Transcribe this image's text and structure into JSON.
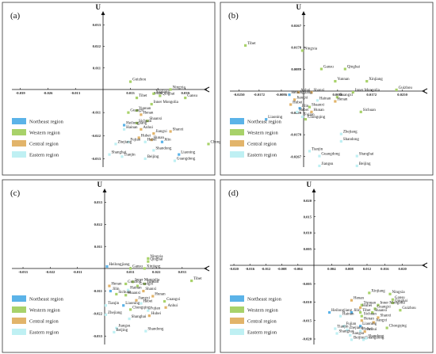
{
  "colors": {
    "northeast": "#5bb3e8",
    "western": "#a8d26a",
    "central": "#e2b46a",
    "eastern": "#bff0f3",
    "axis": "#111111",
    "border": "#333333"
  },
  "legend": {
    "items": [
      {
        "key": "northeast",
        "label": "Northeast region"
      },
      {
        "key": "western",
        "label": "Western region"
      },
      {
        "key": "central",
        "label": "Central region"
      },
      {
        "key": "eastern",
        "label": "Eastern region"
      }
    ]
  },
  "axis_y_label": "U",
  "chart_data": [
    {
      "type": "scatter",
      "panel": "(a)",
      "xlim": [
        -0.043,
        0.047
      ],
      "ylim": [
        -0.037,
        0.038
      ],
      "xticks": [
        -0.039,
        -0.026,
        -0.013,
        0.013,
        0.026,
        0.039
      ],
      "xtick_labels": [
        "-0.039",
        "-0.026",
        "-0.013",
        "0.013",
        "0.026",
        "0.039"
      ],
      "yticks": [
        0.033,
        0.022,
        0.011,
        -0.011,
        -0.022,
        -0.033
      ],
      "ytick_labels": [
        "0.033",
        "0.022",
        "0.011",
        "-0.011",
        "-0.022",
        "-0.033"
      ],
      "points": [
        {
          "name": "Guizhou",
          "region": "western",
          "x": 0.013,
          "y": 0.004
        },
        {
          "name": "Ningxia",
          "region": "western",
          "x": 0.032,
          "y": 0.0
        },
        {
          "name": "Xinjiang",
          "region": "western",
          "x": 0.024,
          "y": -0.002
        },
        {
          "name": "Qinghai",
          "region": "western",
          "x": 0.027,
          "y": -0.003
        },
        {
          "name": "Gansu",
          "region": "western",
          "x": 0.039,
          "y": -0.004
        },
        {
          "name": "Tibet",
          "region": "western",
          "x": 0.016,
          "y": -0.004
        },
        {
          "name": "Inner Mongolia",
          "region": "western",
          "x": 0.023,
          "y": -0.007
        },
        {
          "name": "Yunnan",
          "region": "western",
          "x": 0.016,
          "y": -0.01
        },
        {
          "name": "Guangxi",
          "region": "western",
          "x": 0.012,
          "y": -0.011
        },
        {
          "name": "Henan",
          "region": "central",
          "x": 0.018,
          "y": -0.012
        },
        {
          "name": "Shaanxi",
          "region": "western",
          "x": 0.021,
          "y": -0.015
        },
        {
          "name": "Sichuan",
          "region": "western",
          "x": 0.016,
          "y": -0.016
        },
        {
          "name": "Heilongjiang",
          "region": "northeast",
          "x": 0.01,
          "y": -0.017
        },
        {
          "name": "Hainan",
          "region": "eastern",
          "x": 0.01,
          "y": -0.019
        },
        {
          "name": "Anhui",
          "region": "central",
          "x": 0.018,
          "y": -0.019
        },
        {
          "name": "Shanxi",
          "region": "central",
          "x": 0.032,
          "y": -0.02
        },
        {
          "name": "Jiangxi",
          "region": "central",
          "x": 0.024,
          "y": -0.021
        },
        {
          "name": "Hubei",
          "region": "central",
          "x": 0.017,
          "y": -0.023
        },
        {
          "name": "Hunan",
          "region": "central",
          "x": 0.023,
          "y": -0.024
        },
        {
          "name": "Fujian",
          "region": "eastern",
          "x": 0.012,
          "y": -0.025
        },
        {
          "name": "Hebei",
          "region": "eastern",
          "x": 0.02,
          "y": -0.025
        },
        {
          "name": "Jilin",
          "region": "northeast",
          "x": 0.028,
          "y": -0.025
        },
        {
          "name": "Zhejiang",
          "region": "eastern",
          "x": 0.006,
          "y": -0.026
        },
        {
          "name": "Chongqing",
          "region": "western",
          "x": 0.05,
          "y": -0.026
        },
        {
          "name": "Shandong",
          "region": "eastern",
          "x": 0.024,
          "y": -0.029
        },
        {
          "name": "Shanghai",
          "region": "eastern",
          "x": 0.003,
          "y": -0.031
        },
        {
          "name": "Liaoning",
          "region": "northeast",
          "x": 0.036,
          "y": -0.031
        },
        {
          "name": "Tianjin",
          "region": "eastern",
          "x": 0.009,
          "y": -0.032
        },
        {
          "name": "Beijing",
          "region": "eastern",
          "x": 0.02,
          "y": -0.033
        },
        {
          "name": "Guangdong",
          "region": "eastern",
          "x": 0.034,
          "y": -0.034
        }
      ]
    },
    {
      "type": "scatter",
      "panel": "(b)",
      "xlim": [
        -0.0285,
        0.0295
      ],
      "ylim": [
        -0.031,
        0.031
      ],
      "xticks": [
        -0.025,
        -0.0172,
        -0.0086,
        0.0086,
        0.0172,
        0.025
      ],
      "xtick_labels": [
        "-0.0250",
        "-0.0172",
        "-0.0086",
        "0.0086",
        "0.0172",
        "0.0250"
      ],
      "yticks": [
        0.0267,
        0.0178,
        0.0089,
        -0.0089,
        -0.0178,
        -0.0267
      ],
      "ytick_labels": [
        "0.0267",
        "0.0178",
        "0.0089",
        "-0.0089",
        "-0.0178",
        "-0.0267"
      ],
      "extra_labels": [
        "Tibet",
        "0.0178",
        "0.0086"
      ],
      "points": [
        {
          "name": "Tibet",
          "region": "western",
          "x": -0.0225,
          "y": 0.0186
        },
        {
          "name": "Ningxia",
          "region": "western",
          "x": -0.0005,
          "y": 0.0165
        },
        {
          "name": "Gansu",
          "region": "western",
          "x": 0.0045,
          "y": 0.009
        },
        {
          "name": "Qinghai",
          "region": "western",
          "x": 0.0105,
          "y": 0.009
        },
        {
          "name": "Yunnan",
          "region": "western",
          "x": 0.008,
          "y": 0.004
        },
        {
          "name": "Xinjiang",
          "region": "western",
          "x": 0.016,
          "y": 0.004
        },
        {
          "name": "Guizhou",
          "region": "western",
          "x": 0.0235,
          "y": 0.0005
        },
        {
          "name": "Shanxi",
          "region": "central",
          "x": 0.002,
          "y": -0.0005
        },
        {
          "name": "Inner Mongolia",
          "region": "western",
          "x": 0.0125,
          "y": -0.0005
        },
        {
          "name": "Anhui",
          "region": "central",
          "x": -0.002,
          "y": -0.0005
        },
        {
          "name": "Heilongjiang",
          "region": "northeast",
          "x": -0.0055,
          "y": -0.0015
        },
        {
          "name": "Guangxi",
          "region": "western",
          "x": 0.0085,
          "y": -0.0025
        },
        {
          "name": "Jiangxi",
          "region": "central",
          "x": -0.0035,
          "y": -0.0035
        },
        {
          "name": "Hainan",
          "region": "eastern",
          "x": 0.0035,
          "y": -0.0038
        },
        {
          "name": "Henan",
          "region": "central",
          "x": 0.008,
          "y": -0.0042
        },
        {
          "name": "Hubei",
          "region": "central",
          "x": -0.005,
          "y": -0.0055
        },
        {
          "name": "Jilin",
          "region": "northeast",
          "x": -0.0015,
          "y": -0.007
        },
        {
          "name": "Shaanxi",
          "region": "western",
          "x": 0.0015,
          "y": -0.0065
        },
        {
          "name": "Hebei",
          "region": "eastern",
          "x": -0.0025,
          "y": -0.0085
        },
        {
          "name": "Hunan",
          "region": "central",
          "x": 0.002,
          "y": -0.0085
        },
        {
          "name": "Sichuan",
          "region": "western",
          "x": 0.0145,
          "y": -0.0085
        },
        {
          "name": "Fujian",
          "region": "eastern",
          "x": -0.0005,
          "y": -0.0105
        },
        {
          "name": "Liaoning",
          "region": "northeast",
          "x": -0.0145,
          "y": -0.0115
        },
        {
          "name": "Chongqing",
          "region": "western",
          "x": 0.0005,
          "y": -0.0115
        },
        {
          "name": "Zhejiang",
          "region": "eastern",
          "x": 0.0095,
          "y": -0.0175
        },
        {
          "name": "Shandong",
          "region": "eastern",
          "x": 0.0095,
          "y": -0.0205
        },
        {
          "name": "Tianjin",
          "region": "eastern",
          "x": 0.0015,
          "y": -0.0245
        },
        {
          "name": "Guangdong",
          "region": "eastern",
          "x": 0.004,
          "y": -0.0265
        },
        {
          "name": "Shanghai",
          "region": "eastern",
          "x": 0.0135,
          "y": -0.0265
        },
        {
          "name": "Jiangsu",
          "region": "eastern",
          "x": 0.004,
          "y": -0.0305
        },
        {
          "name": "Beijing",
          "region": "eastern",
          "x": 0.0135,
          "y": -0.0305
        }
      ]
    },
    {
      "type": "scatter",
      "panel": "(c)",
      "xlim": [
        -0.0375,
        0.0415
      ],
      "ylim": [
        -0.037,
        0.038
      ],
      "xticks": [
        -0.033,
        -0.022,
        -0.011,
        0.011,
        0.022,
        0.033
      ],
      "xtick_labels": [
        "-0.033",
        "-0.022",
        "-0.011",
        "0.011",
        "0.022",
        "0.033"
      ],
      "yticks": [
        0.033,
        0.022,
        0.011,
        -0.011,
        -0.022,
        -0.033
      ],
      "ytick_labels": [
        "0.033",
        "0.022",
        "0.011",
        "-0.011",
        "-0.022",
        "-0.033"
      ],
      "points": [
        {
          "name": "Ningxia",
          "region": "western",
          "x": 0.0185,
          "y": 0.005
        },
        {
          "name": "Qinghai",
          "region": "western",
          "x": 0.0185,
          "y": 0.0035
        },
        {
          "name": "Heilongjiang",
          "region": "northeast",
          "x": 0.001,
          "y": 0.001
        },
        {
          "name": "Gansu",
          "region": "western",
          "x": 0.011,
          "y": 0.0
        },
        {
          "name": "Xinjiang",
          "region": "western",
          "x": 0.017,
          "y": 0.0
        },
        {
          "name": "Tibet",
          "region": "western",
          "x": 0.037,
          "y": -0.006
        },
        {
          "name": "Inner Mongolia",
          "region": "western",
          "x": 0.012,
          "y": -0.0065
        },
        {
          "name": "Guizhou",
          "region": "western",
          "x": 0.009,
          "y": -0.0075
        },
        {
          "name": "Yunnan",
          "region": "western",
          "x": 0.017,
          "y": -0.0075
        },
        {
          "name": "Henan",
          "region": "central",
          "x": 0.002,
          "y": -0.0085
        },
        {
          "name": "Guangxi",
          "region": "western",
          "x": 0.014,
          "y": -0.0085
        },
        {
          "name": "Jilin",
          "region": "northeast",
          "x": 0.0025,
          "y": -0.011
        },
        {
          "name": "Hainan",
          "region": "eastern",
          "x": 0.01,
          "y": -0.0105
        },
        {
          "name": "Shanxi",
          "region": "central",
          "x": 0.0165,
          "y": -0.011
        },
        {
          "name": "Sichuan",
          "region": "western",
          "x": 0.005,
          "y": -0.0125
        },
        {
          "name": "Shaanxi",
          "region": "western",
          "x": 0.009,
          "y": -0.013
        },
        {
          "name": "Hunan",
          "region": "central",
          "x": 0.0205,
          "y": -0.0135
        },
        {
          "name": "Jiangxi",
          "region": "central",
          "x": 0.0135,
          "y": -0.0155
        },
        {
          "name": "Hebei",
          "region": "eastern",
          "x": 0.0155,
          "y": -0.017
        },
        {
          "name": "Guangxi",
          "region": "western",
          "x": 0.0255,
          "y": -0.016
        },
        {
          "name": "Tianjin",
          "region": "eastern",
          "x": 0.0005,
          "y": -0.018
        },
        {
          "name": "Liaoning",
          "region": "northeast",
          "x": 0.008,
          "y": -0.018
        },
        {
          "name": "Anhui",
          "region": "central",
          "x": 0.026,
          "y": -0.019
        },
        {
          "name": "Chongqing",
          "region": "western",
          "x": 0.011,
          "y": -0.02
        },
        {
          "name": "Fujian",
          "region": "eastern",
          "x": 0.0185,
          "y": -0.0205
        },
        {
          "name": "Hubei",
          "region": "central",
          "x": 0.019,
          "y": -0.023
        },
        {
          "name": "Zhejiang",
          "region": "eastern",
          "x": 0.0005,
          "y": -0.0225
        },
        {
          "name": "Shanghai",
          "region": "eastern",
          "x": 0.0105,
          "y": -0.0245
        },
        {
          "name": "Jiangsu",
          "region": "eastern",
          "x": 0.005,
          "y": -0.029
        },
        {
          "name": "Beijing",
          "region": "eastern",
          "x": 0.004,
          "y": -0.031
        },
        {
          "name": "Shandong",
          "region": "eastern",
          "x": 0.0175,
          "y": -0.0305
        }
      ]
    },
    {
      "type": "scatter",
      "panel": "(d)",
      "xlim": [
        -0.021,
        0.024
      ],
      "ylim": [
        -0.0215,
        0.0225
      ],
      "xticks": [
        -0.02,
        -0.016,
        -0.012,
        -0.008,
        -0.004,
        0.004,
        0.008,
        0.012,
        0.016,
        0.02
      ],
      "xtick_labels": [
        "-0.020",
        "-0.016",
        "-0.012",
        "-0.008",
        "-0.004",
        "0.004",
        "0.008",
        "0.012",
        "0.016",
        "0.020"
      ],
      "yticks": [
        0.02,
        0.015,
        0.01,
        0.005,
        -0.005,
        -0.01,
        -0.015,
        -0.02
      ],
      "ytick_labels": [
        "0.020",
        "0.015",
        "0.010",
        "0.005",
        "-0.005",
        "-0.010",
        "-0.015",
        "-0.020"
      ],
      "points": [
        {
          "name": "Xinjiang",
          "region": "western",
          "x": 0.0125,
          "y": -0.0075
        },
        {
          "name": "Ningxia",
          "region": "western",
          "x": 0.0172,
          "y": -0.0078
        },
        {
          "name": "Gansu",
          "region": "western",
          "x": 0.0178,
          "y": -0.0093
        },
        {
          "name": "Henan",
          "region": "central",
          "x": 0.0085,
          "y": -0.0095
        },
        {
          "name": "Qinghai",
          "region": "western",
          "x": 0.0178,
          "y": -0.0102
        },
        {
          "name": "Inner Mongolia",
          "region": "western",
          "x": 0.0145,
          "y": -0.0108
        },
        {
          "name": "Yunnan",
          "region": "western",
          "x": 0.0108,
          "y": -0.0108
        },
        {
          "name": "Hubei",
          "region": "central",
          "x": 0.0105,
          "y": -0.0115
        },
        {
          "name": "Guangxi",
          "region": "western",
          "x": 0.0138,
          "y": -0.0118
        },
        {
          "name": "Guizhou",
          "region": "western",
          "x": 0.0195,
          "y": -0.0122
        },
        {
          "name": "Heilongjiang",
          "region": "northeast",
          "x": 0.0035,
          "y": -0.0128
        },
        {
          "name": "Jilin",
          "region": "northeast",
          "x": 0.0085,
          "y": -0.0128
        },
        {
          "name": "Tibet",
          "region": "western",
          "x": 0.0105,
          "y": -0.0128
        },
        {
          "name": "Shaanxi",
          "region": "western",
          "x": 0.0132,
          "y": -0.0128
        },
        {
          "name": "Sichuan",
          "region": "western",
          "x": 0.0108,
          "y": -0.0138
        },
        {
          "name": "Hainan",
          "region": "eastern",
          "x": 0.006,
          "y": -0.0138
        },
        {
          "name": "Henan",
          "region": "central",
          "x": 0.0108,
          "y": -0.015
        },
        {
          "name": "Shanxi",
          "region": "central",
          "x": 0.0145,
          "y": -0.0142
        },
        {
          "name": "Jiangxi",
          "region": "central",
          "x": 0.0135,
          "y": -0.0155
        },
        {
          "name": "Fujian",
          "region": "eastern",
          "x": 0.0068,
          "y": -0.0165
        },
        {
          "name": "Liaoning",
          "region": "northeast",
          "x": 0.0105,
          "y": -0.0165
        },
        {
          "name": "Chongqing",
          "region": "western",
          "x": 0.0165,
          "y": -0.017
        },
        {
          "name": "Tianjin",
          "region": "eastern",
          "x": 0.0048,
          "y": -0.0172
        },
        {
          "name": "Zhejiang",
          "region": "eastern",
          "x": 0.0075,
          "y": -0.0175
        },
        {
          "name": "Anhui",
          "region": "central",
          "x": 0.0115,
          "y": -0.018
        },
        {
          "name": "Hebei",
          "region": "eastern",
          "x": 0.0105,
          "y": -0.0178
        },
        {
          "name": "Shanghai",
          "region": "eastern",
          "x": 0.0052,
          "y": -0.0185
        },
        {
          "name": "Jiangsu",
          "region": "eastern",
          "x": 0.0082,
          "y": -0.019
        },
        {
          "name": "Beijing",
          "region": "eastern",
          "x": 0.0085,
          "y": -0.0202
        },
        {
          "name": "Guangdong",
          "region": "eastern",
          "x": 0.0112,
          "y": -0.0202
        },
        {
          "name": "Shandong",
          "region": "eastern",
          "x": 0.0118,
          "y": -0.0198
        }
      ]
    }
  ]
}
